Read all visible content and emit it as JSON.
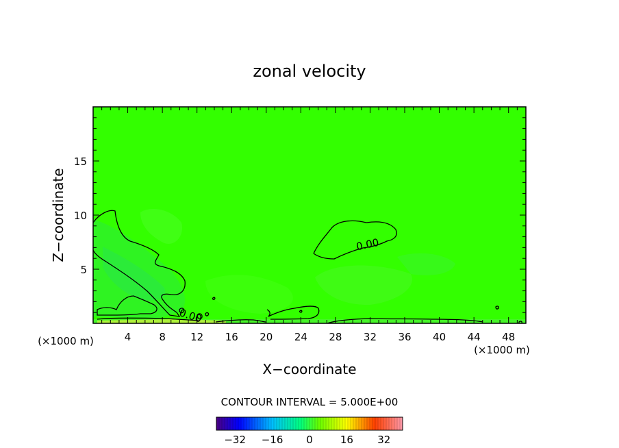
{
  "chart_data": {
    "type": "heatmap",
    "title": "zonal velocity",
    "xlabel": "X−coordinate",
    "ylabel": "Z−coordinate",
    "x_unit": "(×1000 m)",
    "xlim": [
      0,
      50
    ],
    "ylim": [
      0,
      20
    ],
    "x_ticks": [
      4,
      8,
      12,
      16,
      20,
      24,
      28,
      32,
      36,
      40,
      44,
      48
    ],
    "y_ticks": [
      5,
      10,
      15
    ],
    "contour_interval_label": "CONTOUR INTERVAL = 5.000E+00",
    "contour_interval": 5.0,
    "contour_labels": [
      "0.00",
      "0.00"
    ],
    "colorbar": {
      "ticks": [
        -32,
        -16,
        0,
        16,
        32
      ],
      "range": [
        -40,
        40
      ]
    },
    "field_value_approx": 0,
    "grid": false
  },
  "colors": {
    "background": "#ffffff",
    "field_main": "#33ff00",
    "field_light_patch": "#4dff1a",
    "field_slightly_negative": "#2bf23d",
    "contour_line": "#000000"
  }
}
